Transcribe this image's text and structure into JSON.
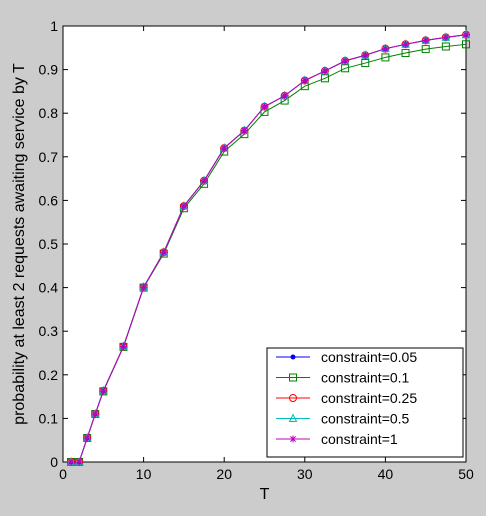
{
  "chart_data": {
    "type": "line",
    "title": "",
    "xlabel": "T",
    "ylabel": "probability at least 2 requests awaiting service by T",
    "xlim": [
      0,
      50
    ],
    "ylim": [
      0,
      1
    ],
    "xticks": [
      0,
      10,
      20,
      30,
      40,
      50
    ],
    "yticks": [
      0,
      0.1,
      0.2,
      0.3,
      0.4,
      0.5,
      0.6,
      0.7,
      0.8,
      0.9,
      1
    ],
    "ytick_labels": [
      "0",
      "0.1",
      "0.2",
      "0.3",
      "0.4",
      "0.5",
      "0.6",
      "0.7",
      "0.8",
      "0.9",
      "1"
    ],
    "grid": false,
    "legend_position": "bottom-right",
    "x": [
      1,
      2,
      3,
      4,
      5,
      7.5,
      10,
      12.5,
      15,
      17.5,
      20,
      22.5,
      25,
      27.5,
      30,
      32.5,
      35,
      37.5,
      40,
      42.5,
      45,
      47.5,
      50
    ],
    "series": [
      {
        "name": "constraint=0.05",
        "color": "#0000ff",
        "marker": "dot",
        "values": [
          0,
          0,
          0.055,
          0.11,
          0.163,
          0.265,
          0.401,
          0.481,
          0.587,
          0.645,
          0.72,
          0.76,
          0.815,
          0.84,
          0.875,
          0.897,
          0.92,
          0.933,
          0.948,
          0.958,
          0.967,
          0.974,
          0.98
        ]
      },
      {
        "name": "constraint=0.1",
        "color": "#008000",
        "marker": "square",
        "values": [
          0,
          0,
          0.055,
          0.11,
          0.162,
          0.264,
          0.4,
          0.478,
          0.582,
          0.638,
          0.712,
          0.752,
          0.803,
          0.829,
          0.862,
          0.88,
          0.903,
          0.915,
          0.928,
          0.938,
          0.947,
          0.953,
          0.958
        ]
      },
      {
        "name": "constraint=0.25",
        "color": "#ff0000",
        "marker": "circle",
        "values": [
          0,
          0,
          0.055,
          0.11,
          0.163,
          0.265,
          0.401,
          0.481,
          0.587,
          0.645,
          0.72,
          0.76,
          0.815,
          0.84,
          0.875,
          0.897,
          0.92,
          0.933,
          0.948,
          0.958,
          0.967,
          0.974,
          0.98
        ]
      },
      {
        "name": "constraint=0.5",
        "color": "#00bfbf",
        "marker": "triangle",
        "values": [
          0,
          0,
          0.055,
          0.11,
          0.163,
          0.265,
          0.401,
          0.481,
          0.587,
          0.645,
          0.72,
          0.76,
          0.815,
          0.84,
          0.875,
          0.897,
          0.92,
          0.933,
          0.948,
          0.958,
          0.967,
          0.974,
          0.98
        ]
      },
      {
        "name": "constraint=1",
        "color": "#bf00bf",
        "marker": "star",
        "values": [
          0,
          0,
          0.055,
          0.11,
          0.163,
          0.265,
          0.401,
          0.481,
          0.587,
          0.645,
          0.72,
          0.76,
          0.815,
          0.84,
          0.875,
          0.897,
          0.92,
          0.933,
          0.948,
          0.958,
          0.967,
          0.974,
          0.98
        ]
      }
    ]
  }
}
